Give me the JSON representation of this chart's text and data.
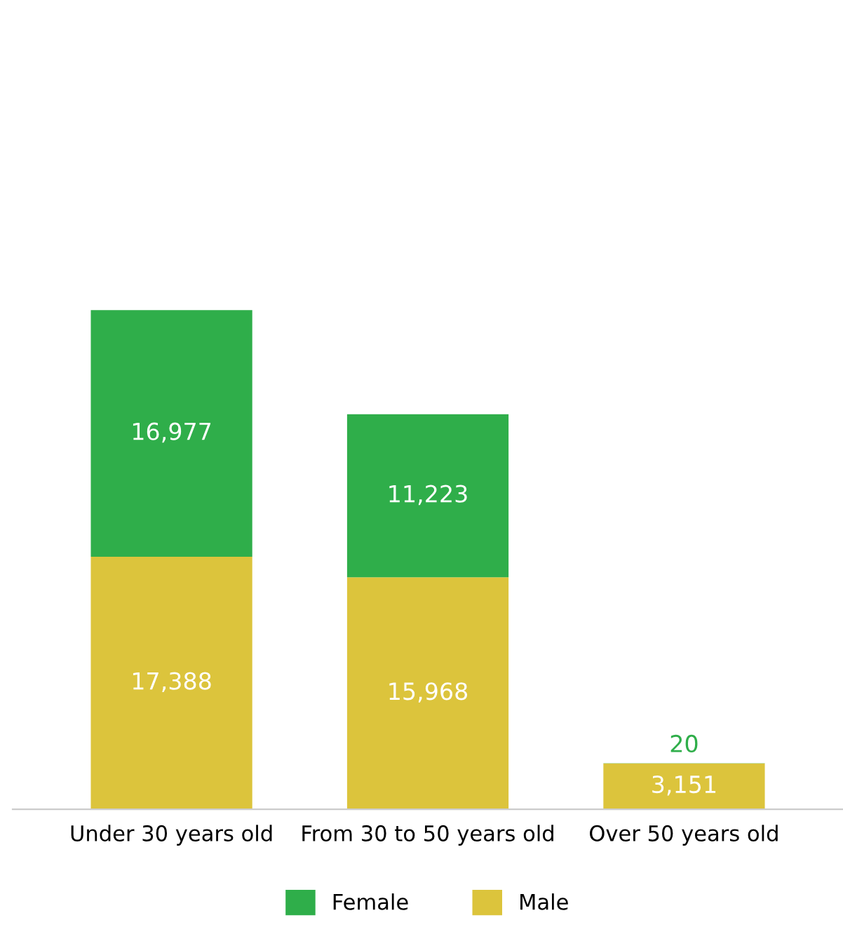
{
  "chart_data": {
    "type": "bar",
    "stacked": true,
    "categories": [
      "Under 30 years old",
      "From 30 to 50 years old",
      "Over 50 years old"
    ],
    "series": [
      {
        "name": "Male",
        "color": "#dcc43c",
        "values": [
          17388,
          15968,
          3151
        ],
        "value_labels": [
          "17,388",
          "15,968",
          "3,151"
        ]
      },
      {
        "name": "Female",
        "color": "#2fae4a",
        "values": [
          16977,
          11223,
          20
        ],
        "value_labels": [
          "16,977",
          "11,223",
          "20"
        ]
      }
    ],
    "legend": "bottom",
    "grid": false
  }
}
